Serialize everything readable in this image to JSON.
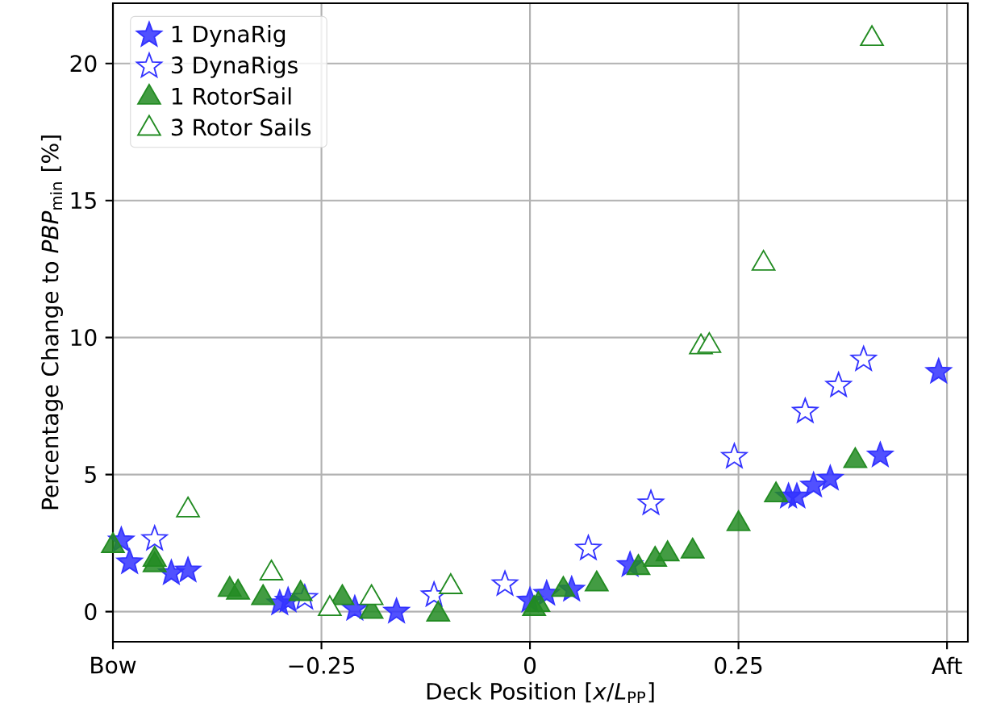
{
  "chart_data": {
    "type": "scatter",
    "xlabel": "Deck Position [*x*/*L*$_{PP}$]",
    "ylabel": "Percentage Change to *PBP*$_{min}$  [%]",
    "xlim": [
      -0.5,
      0.525
    ],
    "ylim": [
      -1.1,
      22.2
    ],
    "xticks": [
      {
        "value": -0.5,
        "label": "Bow"
      },
      {
        "value": -0.25,
        "label": "−0.25"
      },
      0,
      0.25,
      {
        "value": 0.5,
        "label": "Aft"
      }
    ],
    "yticks": [
      0,
      5,
      10,
      15,
      20
    ],
    "grid": true,
    "legend": "top left",
    "series": [
      {
        "name": "1 DynaRig",
        "color": "#3333ff",
        "marker": "star",
        "x": [
          -0.49,
          -0.48,
          -0.43,
          -0.41,
          -0.3,
          -0.29,
          -0.21,
          -0.16,
          0.0,
          0.02,
          0.05,
          0.12,
          0.31,
          0.32,
          0.34,
          0.36,
          0.42,
          0.49
        ],
        "values": [
          2.6,
          1.8,
          1.4,
          1.5,
          0.3,
          0.4,
          0.1,
          0.0,
          0.4,
          0.65,
          0.8,
          1.7,
          4.2,
          4.2,
          4.6,
          4.85,
          5.7,
          8.75
        ]
      },
      {
        "name": "3 DynaRigs",
        "color": "#3333ff",
        "marker": "star",
        "x": [
          -0.45,
          -0.27,
          -0.115,
          -0.03,
          0.07,
          0.145,
          0.245,
          0.33,
          0.37,
          0.4
        ],
        "values": [
          2.65,
          0.5,
          0.6,
          1.0,
          2.3,
          3.95,
          5.65,
          7.3,
          8.25,
          9.2
        ]
      },
      {
        "name": "1 RotorSail",
        "color": "#228b22",
        "marker": "triangle",
        "x": [
          -0.5,
          -0.45,
          -0.45,
          -0.36,
          -0.35,
          -0.32,
          -0.275,
          -0.225,
          -0.19,
          -0.11,
          0.01,
          0.005,
          0.04,
          0.08,
          0.13,
          0.15,
          0.165,
          0.195,
          0.25,
          0.295,
          0.39
        ],
        "values": [
          2.4,
          1.9,
          1.7,
          0.8,
          0.7,
          0.5,
          0.65,
          0.5,
          0.0,
          -0.1,
          0.25,
          0.1,
          0.8,
          1.0,
          1.6,
          1.9,
          2.1,
          2.2,
          3.2,
          4.25,
          5.5
        ]
      },
      {
        "name": "3 Rotor Sails",
        "color": "#228b22",
        "marker": "triangle",
        "x": [
          -0.41,
          -0.31,
          -0.24,
          -0.19,
          -0.095,
          0.205,
          0.215,
          0.28,
          0.41
        ],
        "values": [
          3.7,
          1.4,
          0.1,
          0.5,
          0.9,
          9.65,
          9.7,
          12.7,
          20.9
        ]
      }
    ]
  }
}
